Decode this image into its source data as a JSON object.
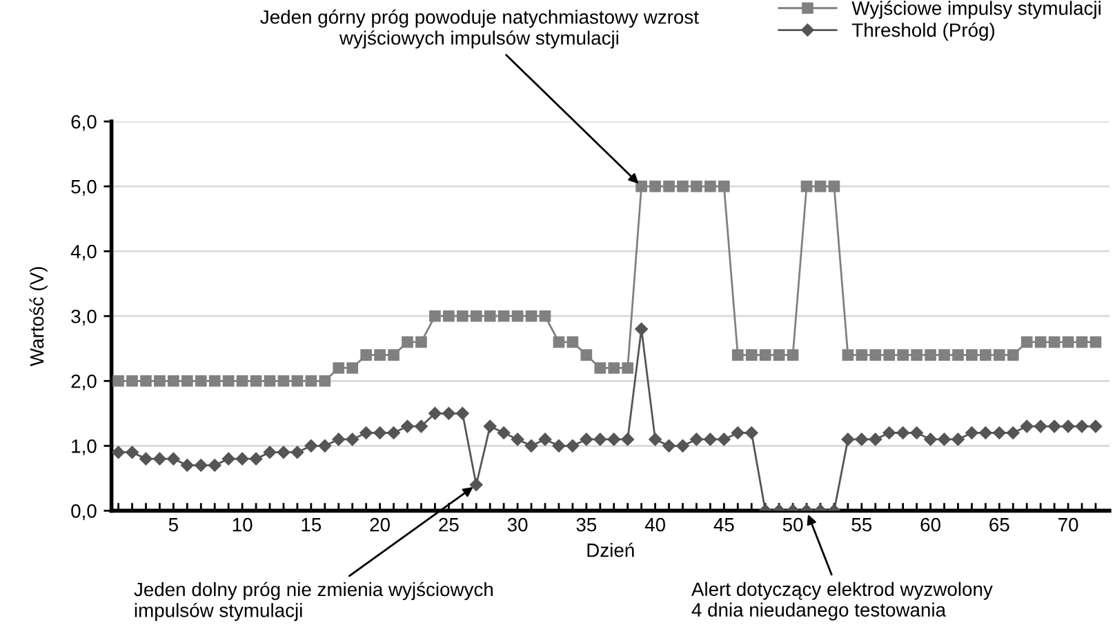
{
  "chart_data": {
    "type": "line",
    "xlabel": "Dzień",
    "ylabel": "Wartość (V)",
    "x": [
      1,
      2,
      3,
      4,
      5,
      6,
      7,
      8,
      9,
      10,
      11,
      12,
      13,
      14,
      15,
      16,
      17,
      18,
      19,
      20,
      21,
      22,
      23,
      24,
      25,
      26,
      27,
      28,
      29,
      30,
      31,
      32,
      33,
      34,
      35,
      36,
      37,
      38,
      39,
      40,
      41,
      42,
      43,
      44,
      45,
      46,
      47,
      48,
      49,
      50,
      51,
      52,
      53,
      54,
      55,
      56,
      57,
      58,
      59,
      60,
      61,
      62,
      63,
      64,
      65,
      66,
      67,
      68,
      69,
      70,
      71,
      72
    ],
    "series": [
      {
        "name": "Wyjściowe impulsy stymulacji",
        "color": "#808080",
        "marker": "square",
        "values": [
          2.0,
          2.0,
          2.0,
          2.0,
          2.0,
          2.0,
          2.0,
          2.0,
          2.0,
          2.0,
          2.0,
          2.0,
          2.0,
          2.0,
          2.0,
          2.0,
          2.2,
          2.2,
          2.4,
          2.4,
          2.4,
          2.6,
          2.6,
          3.0,
          3.0,
          3.0,
          3.0,
          3.0,
          3.0,
          3.0,
          3.0,
          3.0,
          2.6,
          2.6,
          2.4,
          2.2,
          2.2,
          2.2,
          5.0,
          5.0,
          5.0,
          5.0,
          5.0,
          5.0,
          5.0,
          2.4,
          2.4,
          2.4,
          2.4,
          2.4,
          5.0,
          5.0,
          5.0,
          2.4,
          2.4,
          2.4,
          2.4,
          2.4,
          2.4,
          2.4,
          2.4,
          2.4,
          2.4,
          2.4,
          2.4,
          2.4,
          2.6,
          2.6,
          2.6,
          2.6,
          2.6,
          2.6
        ]
      },
      {
        "name": "Threshold (Próg)",
        "color": "#555555",
        "marker": "diamond",
        "values": [
          0.9,
          0.9,
          0.8,
          0.8,
          0.8,
          0.7,
          0.7,
          0.7,
          0.8,
          0.8,
          0.8,
          0.9,
          0.9,
          0.9,
          1.0,
          1.0,
          1.1,
          1.1,
          1.2,
          1.2,
          1.2,
          1.3,
          1.3,
          1.5,
          1.5,
          1.5,
          0.4,
          1.3,
          1.2,
          1.1,
          1.0,
          1.1,
          1.0,
          1.0,
          1.1,
          1.1,
          1.1,
          1.1,
          2.8,
          1.1,
          1.0,
          1.0,
          1.1,
          1.1,
          1.1,
          1.2,
          1.2,
          0,
          0,
          0,
          0,
          0,
          0,
          1.1,
          1.1,
          1.1,
          1.2,
          1.2,
          1.2,
          1.1,
          1.1,
          1.1,
          1.2,
          1.2,
          1.2,
          1.2,
          1.3,
          1.3,
          1.3,
          1.3,
          1.3,
          1.3
        ]
      }
    ],
    "xlim": [
      0.5,
      73
    ],
    "xticks": [
      {
        "value": 1,
        "label": null
      },
      {
        "value": 2,
        "label": null
      },
      {
        "value": 3,
        "label": null
      },
      {
        "value": 4,
        "label": null
      },
      5,
      {
        "value": 6,
        "label": null
      },
      {
        "value": 7,
        "label": null
      },
      {
        "value": 8,
        "label": null
      },
      {
        "value": 9,
        "label": null
      },
      10,
      {
        "value": 11,
        "label": null
      },
      {
        "value": 12,
        "label": null
      },
      {
        "value": 13,
        "label": null
      },
      {
        "value": 14,
        "label": null
      },
      15,
      {
        "value": 16,
        "label": null
      },
      {
        "value": 17,
        "label": null
      },
      {
        "value": 18,
        "label": null
      },
      {
        "value": 19,
        "label": null
      },
      20,
      {
        "value": 21,
        "label": null
      },
      {
        "value": 22,
        "label": null
      },
      {
        "value": 23,
        "label": null
      },
      {
        "value": 24,
        "label": null
      },
      25,
      {
        "value": 26,
        "label": null
      },
      {
        "value": 27,
        "label": null
      },
      {
        "value": 28,
        "label": null
      },
      {
        "value": 29,
        "label": null
      },
      30,
      {
        "value": 31,
        "label": null
      },
      {
        "value": 32,
        "label": null
      },
      {
        "value": 33,
        "label": null
      },
      {
        "value": 34,
        "label": null
      },
      35,
      {
        "value": 36,
        "label": null
      },
      {
        "value": 37,
        "label": null
      },
      {
        "value": 38,
        "label": null
      },
      {
        "value": 39,
        "label": null
      },
      40,
      {
        "value": 41,
        "label": null
      },
      {
        "value": 42,
        "label": null
      },
      {
        "value": 43,
        "label": null
      },
      {
        "value": 44,
        "label": null
      },
      45,
      {
        "value": 46,
        "label": null
      },
      {
        "value": 47,
        "label": null
      },
      {
        "value": 48,
        "label": null
      },
      {
        "value": 49,
        "label": null
      },
      50,
      {
        "value": 51,
        "label": null
      },
      {
        "value": 52,
        "label": null
      },
      {
        "value": 53,
        "label": null
      },
      {
        "value": 54,
        "label": null
      },
      55,
      {
        "value": 56,
        "label": null
      },
      {
        "value": 57,
        "label": null
      },
      {
        "value": 58,
        "label": null
      },
      {
        "value": 59,
        "label": null
      },
      60,
      {
        "value": 61,
        "label": null
      },
      {
        "value": 62,
        "label": null
      },
      {
        "value": 63,
        "label": null
      },
      {
        "value": 64,
        "label": null
      },
      65,
      {
        "value": 66,
        "label": null
      },
      {
        "value": 67,
        "label": null
      },
      {
        "value": 68,
        "label": null
      },
      {
        "value": 69,
        "label": null
      },
      70,
      {
        "value": 71,
        "label": null
      },
      {
        "value": 72,
        "label": null
      }
    ],
    "ylim": [
      0,
      6
    ],
    "yticks": [
      {
        "value": 0,
        "label": "0,0"
      },
      {
        "value": 1,
        "label": "1,0"
      },
      {
        "value": 2,
        "label": "2,0"
      },
      {
        "value": 3,
        "label": "3,0"
      },
      {
        "value": 4,
        "label": "4,0"
      },
      {
        "value": 5,
        "label": "5,0"
      },
      {
        "value": 6,
        "label": "6,0"
      }
    ],
    "grid": "y",
    "legend": "top right",
    "line_style": "solid",
    "annotations": [
      {
        "text": "Jeden górny próg powoduje natychmiastowy wzrost\nwyjściowych impulsów stymulacji",
        "x": 39,
        "y": 5.0
      },
      {
        "text": "Jeden dolny próg nie zmienia wyjściowych\nimpulsów stymulacji",
        "x": 27,
        "y": 0.4
      },
      {
        "text": "Alert dotyczący elektrod wyzwolony\n4 dnia nieudanego testowania",
        "x": 51,
        "y": 0
      }
    ]
  }
}
